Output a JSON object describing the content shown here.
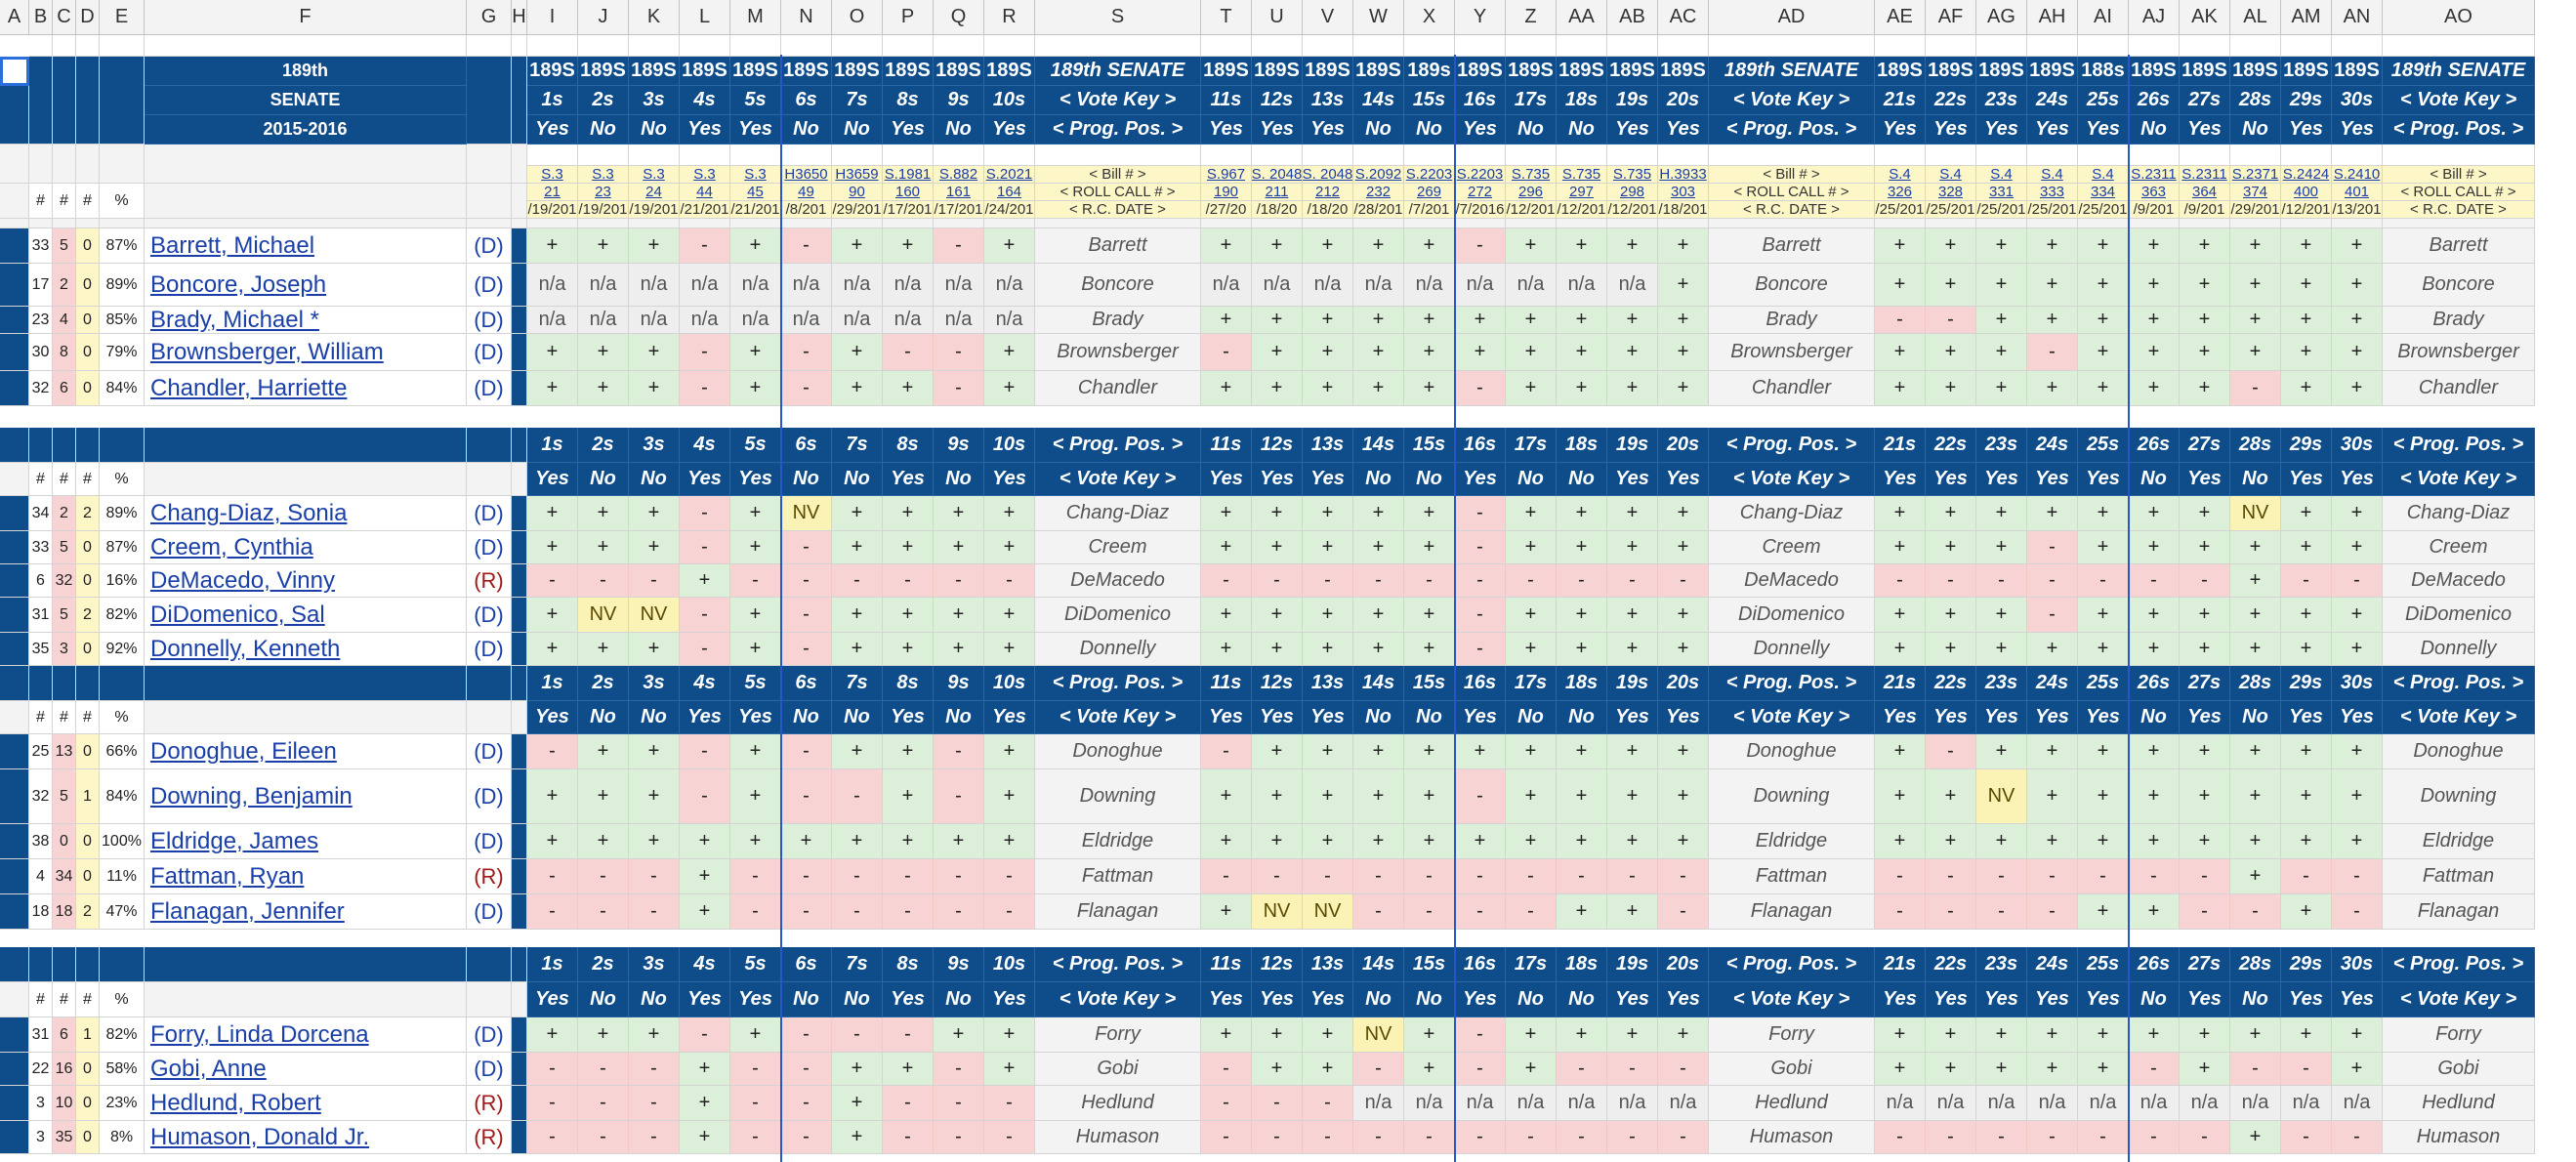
{
  "columns": [
    "A",
    "B",
    "C",
    "D",
    "E",
    "F",
    "G",
    "H",
    "I",
    "J",
    "K",
    "L",
    "M",
    "N",
    "O",
    "P",
    "Q",
    "R",
    "S",
    "T",
    "U",
    "V",
    "W",
    "X",
    "Y",
    "Z",
    "AA",
    "AB",
    "AC",
    "AD",
    "AE",
    "AF",
    "AG",
    "AH",
    "AI",
    "AJ",
    "AK",
    "AL",
    "AM",
    "AN",
    "AO"
  ],
  "title_block": [
    "189th",
    "SENATE",
    "2015-2016"
  ],
  "group_label": "189th SENATE",
  "vote_key_label": "< Vote Key >",
  "prog_pos_label": "< Prog. Pos. >",
  "bill_label": "< Bill # >",
  "roll_label": "< ROLL CALL # >",
  "rcdate_label": "< R.C. DATE >",
  "stat_headers": [
    "#",
    "#",
    "#",
    "%"
  ],
  "vote_blocks": [
    {
      "ids": [
        "189S",
        "189S",
        "189S",
        "189S",
        "189S",
        "189S",
        "189S",
        "189S",
        "189S",
        "189S"
      ],
      "nums": [
        "1s",
        "2s",
        "3s",
        "4s",
        "5s",
        "6s",
        "7s",
        "8s",
        "9s",
        "10s"
      ],
      "keys": [
        "Yes",
        "No",
        "No",
        "Yes",
        "Yes",
        "No",
        "No",
        "Yes",
        "No",
        "Yes"
      ],
      "bills": [
        "S.3",
        "S.3",
        "S.3",
        "S.3",
        "S.3",
        "H3650",
        "H3659",
        "S.1981",
        "S.882",
        "S.2021"
      ],
      "rolls": [
        "21",
        "23",
        "24",
        "44",
        "45",
        "49",
        "90",
        "160",
        "161",
        "164"
      ],
      "dates": [
        "/19/201",
        "/19/201",
        "/19/201",
        "/21/201",
        "/21/201",
        "/8/201",
        "/29/201",
        "/17/201",
        "/17/201",
        "/24/201"
      ]
    },
    {
      "ids": [
        "189S",
        "189S",
        "189S",
        "189S",
        "189s",
        "189S",
        "189S",
        "189S",
        "189S",
        "189S"
      ],
      "nums": [
        "11s",
        "12s",
        "13s",
        "14s",
        "15s",
        "16s",
        "17s",
        "18s",
        "19s",
        "20s"
      ],
      "keys": [
        "Yes",
        "Yes",
        "Yes",
        "No",
        "No",
        "Yes",
        "No",
        "No",
        "Yes",
        "Yes"
      ],
      "bills": [
        "S.967",
        "S. 2048",
        "S. 2048",
        "S.2092",
        "S.2203",
        "S.2203",
        "S.735",
        "S.735",
        "S.735",
        "H.3933"
      ],
      "rolls": [
        "190",
        "211",
        "212",
        "232",
        "269",
        "272",
        "296",
        "297",
        "298",
        "303"
      ],
      "dates": [
        "/27/20",
        "/18/20",
        "/18/20",
        "/28/201",
        "/7/201",
        "/7/2016",
        "/12/201",
        "/12/201",
        "/12/201",
        "/18/201"
      ]
    },
    {
      "ids": [
        "189S",
        "189S",
        "189S",
        "189S",
        "188s",
        "189S",
        "189S",
        "189S",
        "189S",
        "189S"
      ],
      "nums": [
        "21s",
        "22s",
        "23s",
        "24s",
        "25s",
        "26s",
        "27s",
        "28s",
        "29s",
        "30s"
      ],
      "keys": [
        "Yes",
        "Yes",
        "Yes",
        "Yes",
        "Yes",
        "No",
        "Yes",
        "No",
        "Yes",
        "Yes"
      ],
      "bills": [
        "S.4",
        "S.4",
        "S.4",
        "S.4",
        "S.4",
        "S.2311",
        "S.2311",
        "S.2371",
        "S.2424",
        "S.2410"
      ],
      "rolls": [
        "326",
        "328",
        "331",
        "333",
        "334",
        "363",
        "364",
        "374",
        "400",
        "401"
      ],
      "dates": [
        "/25/201",
        "/25/201",
        "/25/201",
        "/25/201",
        "/25/201",
        "/9/201",
        "/9/201",
        "/29/201",
        "/12/201",
        "/13/201"
      ]
    }
  ],
  "sections": [
    {
      "legislators": [
        {
          "name": "Barrett, Michael",
          "party": "(D)",
          "short": "Barrett",
          "stats": [
            "33",
            "5",
            "0",
            "87%"
          ],
          "votes": [
            "+",
            "+",
            "+",
            "-",
            "+",
            "-",
            "+",
            "+",
            "-",
            "+",
            "+",
            "+",
            "+",
            "+",
            "+",
            "-",
            "+",
            "+",
            "+",
            "+",
            "+",
            "+",
            "+",
            "+",
            "+",
            "+",
            "+",
            "+",
            "+",
            "+"
          ]
        },
        {
          "name": "Boncore, Joseph",
          "party": "(D)",
          "short": "Boncore",
          "stats": [
            "17",
            "2",
            "0",
            "89%"
          ],
          "votes": [
            "n/a",
            "n/a",
            "n/a",
            "n/a",
            "n/a",
            "n/a",
            "n/a",
            "n/a",
            "n/a",
            "n/a",
            "n/a",
            "n/a",
            "n/a",
            "n/a",
            "n/a",
            "n/a",
            "n/a",
            "n/a",
            "n/a",
            "+",
            "+",
            "+",
            "+",
            "+",
            "+",
            "+",
            "+",
            "+",
            "+",
            "+"
          ]
        },
        {
          "name": "Brady, Michael *",
          "party": "(D)",
          "short": "Brady",
          "stats": [
            "23",
            "4",
            "0",
            "85%"
          ],
          "votes": [
            "n/a",
            "n/a",
            "n/a",
            "n/a",
            "n/a",
            "n/a",
            "n/a",
            "n/a",
            "n/a",
            "n/a",
            "+",
            "+",
            "+",
            "+",
            "+",
            "+",
            "+",
            "+",
            "+",
            "+",
            "-",
            "-",
            "+",
            "+",
            "+",
            "+",
            "+",
            "+",
            "+",
            "+"
          ]
        },
        {
          "name": "Brownsberger, William",
          "party": "(D)",
          "short": "Brownsberger",
          "stats": [
            "30",
            "8",
            "0",
            "79%"
          ],
          "votes": [
            "+",
            "+",
            "+",
            "-",
            "+",
            "-",
            "+",
            "-",
            "-",
            "+",
            "-",
            "+",
            "+",
            "+",
            "+",
            "+",
            "+",
            "+",
            "+",
            "+",
            "+",
            "+",
            "+",
            "-",
            "+",
            "+",
            "+",
            "+",
            "+",
            "+"
          ]
        },
        {
          "name": "Chandler, Harriette",
          "party": "(D)",
          "short": "Chandler",
          "stats": [
            "32",
            "6",
            "0",
            "84%"
          ],
          "votes": [
            "+",
            "+",
            "+",
            "-",
            "+",
            "-",
            "+",
            "+",
            "-",
            "+",
            "+",
            "+",
            "+",
            "+",
            "+",
            "-",
            "+",
            "+",
            "+",
            "+",
            "+",
            "+",
            "+",
            "+",
            "+",
            "+",
            "+",
            "-",
            "+",
            "+"
          ]
        }
      ]
    },
    {
      "legislators": [
        {
          "name": "Chang-Diaz, Sonia",
          "party": "(D)",
          "short": "Chang-Diaz",
          "stats": [
            "34",
            "2",
            "2",
            "89%"
          ],
          "votes": [
            "+",
            "+",
            "+",
            "-",
            "+",
            "NV",
            "+",
            "+",
            "+",
            "+",
            "+",
            "+",
            "+",
            "+",
            "+",
            "-",
            "+",
            "+",
            "+",
            "+",
            "+",
            "+",
            "+",
            "+",
            "+",
            "+",
            "+",
            "NV",
            "+",
            "+"
          ]
        },
        {
          "name": "Creem, Cynthia",
          "party": "(D)",
          "short": "Creem",
          "stats": [
            "33",
            "5",
            "0",
            "87%"
          ],
          "votes": [
            "+",
            "+",
            "+",
            "-",
            "+",
            "-",
            "+",
            "+",
            "+",
            "+",
            "+",
            "+",
            "+",
            "+",
            "+",
            "-",
            "+",
            "+",
            "+",
            "+",
            "+",
            "+",
            "+",
            "-",
            "+",
            "+",
            "+",
            "+",
            "+",
            "+"
          ]
        },
        {
          "name": "DeMacedo, Vinny",
          "party": "(R)",
          "short": "DeMacedo",
          "stats": [
            "6",
            "32",
            "0",
            "16%"
          ],
          "votes": [
            "-",
            "-",
            "-",
            "+",
            "-",
            "-",
            "-",
            "-",
            "-",
            "-",
            "-",
            "-",
            "-",
            "-",
            "-",
            "-",
            "-",
            "-",
            "-",
            "-",
            "-",
            "-",
            "-",
            "-",
            "-",
            "-",
            "-",
            "+",
            "-",
            "-"
          ]
        },
        {
          "name": "DiDomenico, Sal",
          "party": "(D)",
          "short": "DiDomenico",
          "stats": [
            "31",
            "5",
            "2",
            "82%"
          ],
          "votes": [
            "+",
            "NV",
            "NV",
            "-",
            "+",
            "-",
            "+",
            "+",
            "+",
            "+",
            "+",
            "+",
            "+",
            "+",
            "+",
            "-",
            "+",
            "+",
            "+",
            "+",
            "+",
            "+",
            "+",
            "-",
            "+",
            "+",
            "+",
            "+",
            "+",
            "+"
          ]
        },
        {
          "name": "Donnelly, Kenneth",
          "party": "(D)",
          "short": "Donnelly",
          "stats": [
            "35",
            "3",
            "0",
            "92%"
          ],
          "votes": [
            "+",
            "+",
            "+",
            "-",
            "+",
            "-",
            "+",
            "+",
            "+",
            "+",
            "+",
            "+",
            "+",
            "+",
            "+",
            "-",
            "+",
            "+",
            "+",
            "+",
            "+",
            "+",
            "+",
            "+",
            "+",
            "+",
            "+",
            "+",
            "+",
            "+"
          ]
        }
      ]
    },
    {
      "legislators": [
        {
          "name": "Donoghue, Eileen",
          "party": "(D)",
          "short": "Donoghue",
          "stats": [
            "25",
            "13",
            "0",
            "66%"
          ],
          "votes": [
            "-",
            "+",
            "+",
            "-",
            "+",
            "-",
            "+",
            "+",
            "-",
            "+",
            "-",
            "+",
            "+",
            "+",
            "+",
            "+",
            "+",
            "+",
            "+",
            "+",
            "+",
            "-",
            "+",
            "+",
            "+",
            "+",
            "+",
            "+",
            "+",
            "+"
          ]
        },
        {
          "name": "Downing, Benjamin",
          "party": "(D)",
          "short": "Downing",
          "stats": [
            "32",
            "5",
            "1",
            "84%"
          ],
          "votes": [
            "+",
            "+",
            "+",
            "-",
            "+",
            "-",
            "-",
            "+",
            "-",
            "+",
            "+",
            "+",
            "+",
            "+",
            "+",
            "-",
            "+",
            "+",
            "+",
            "+",
            "+",
            "+",
            "NV",
            "+",
            "+",
            "+",
            "+",
            "+",
            "+",
            "+"
          ]
        },
        {
          "name": "Eldridge, James",
          "party": "(D)",
          "short": "Eldridge",
          "stats": [
            "38",
            "0",
            "0",
            "100%"
          ],
          "votes": [
            "+",
            "+",
            "+",
            "+",
            "+",
            "+",
            "+",
            "+",
            "+",
            "+",
            "+",
            "+",
            "+",
            "+",
            "+",
            "+",
            "+",
            "+",
            "+",
            "+",
            "+",
            "+",
            "+",
            "+",
            "+",
            "+",
            "+",
            "+",
            "+",
            "+"
          ]
        },
        {
          "name": "Fattman, Ryan",
          "party": "(R)",
          "short": "Fattman",
          "stats": [
            "4",
            "34",
            "0",
            "11%"
          ],
          "votes": [
            "-",
            "-",
            "-",
            "+",
            "-",
            "-",
            "-",
            "-",
            "-",
            "-",
            "-",
            "-",
            "-",
            "-",
            "-",
            "-",
            "-",
            "-",
            "-",
            "-",
            "-",
            "-",
            "-",
            "-",
            "-",
            "-",
            "-",
            "+",
            "-",
            "-"
          ]
        },
        {
          "name": "Flanagan, Jennifer",
          "party": "(D)",
          "short": "Flanagan",
          "stats": [
            "18",
            "18",
            "2",
            "47%"
          ],
          "votes": [
            "-",
            "-",
            "-",
            "+",
            "-",
            "-",
            "-",
            "-",
            "-",
            "-",
            "+",
            "NV",
            "NV",
            "-",
            "-",
            "-",
            "-",
            "+",
            "+",
            "-",
            "-",
            "-",
            "-",
            "-",
            "+",
            "+",
            "-",
            "-",
            "+",
            "-"
          ]
        }
      ]
    },
    {
      "legislators": [
        {
          "name": "Forry, Linda Dorcena",
          "party": "(D)",
          "short": "Forry",
          "stats": [
            "31",
            "6",
            "1",
            "82%"
          ],
          "votes": [
            "+",
            "+",
            "+",
            "-",
            "+",
            "-",
            "-",
            "-",
            "+",
            "+",
            "+",
            "+",
            "+",
            "NV",
            "+",
            "-",
            "+",
            "+",
            "+",
            "+",
            "+",
            "+",
            "+",
            "+",
            "+",
            "+",
            "+",
            "+",
            "+",
            "+"
          ]
        },
        {
          "name": "Gobi, Anne",
          "party": "(D)",
          "short": "Gobi",
          "stats": [
            "22",
            "16",
            "0",
            "58%"
          ],
          "votes": [
            "-",
            "-",
            "-",
            "+",
            "-",
            "-",
            "+",
            "+",
            "-",
            "+",
            "-",
            "+",
            "+",
            "-",
            "+",
            "-",
            "+",
            "-",
            "-",
            "-",
            "+",
            "+",
            "+",
            "+",
            "+",
            "-",
            "+",
            "-",
            "-",
            "+"
          ]
        },
        {
          "name": "Hedlund, Robert",
          "party": "(R)",
          "short": "Hedlund",
          "stats": [
            "3",
            "10",
            "0",
            "23%"
          ],
          "votes": [
            "-",
            "-",
            "-",
            "+",
            "-",
            "-",
            "+",
            "-",
            "-",
            "-",
            "-",
            "-",
            "-",
            "n/a",
            "n/a",
            "n/a",
            "n/a",
            "n/a",
            "n/a",
            "n/a",
            "n/a",
            "n/a",
            "n/a",
            "n/a",
            "n/a",
            "n/a",
            "n/a",
            "n/a",
            "n/a",
            "n/a"
          ]
        },
        {
          "name": "Humason, Donald Jr.",
          "party": "(R)",
          "short": "Humason",
          "stats": [
            "3",
            "35",
            "0",
            "8%"
          ],
          "votes": [
            "-",
            "-",
            "-",
            "+",
            "-",
            "-",
            "+",
            "-",
            "-",
            "-",
            "-",
            "-",
            "-",
            "-",
            "-",
            "-",
            "-",
            "-",
            "-",
            "-",
            "-",
            "-",
            "-",
            "-",
            "-",
            "-",
            "-",
            "+",
            "-",
            "-"
          ]
        }
      ]
    }
  ]
}
